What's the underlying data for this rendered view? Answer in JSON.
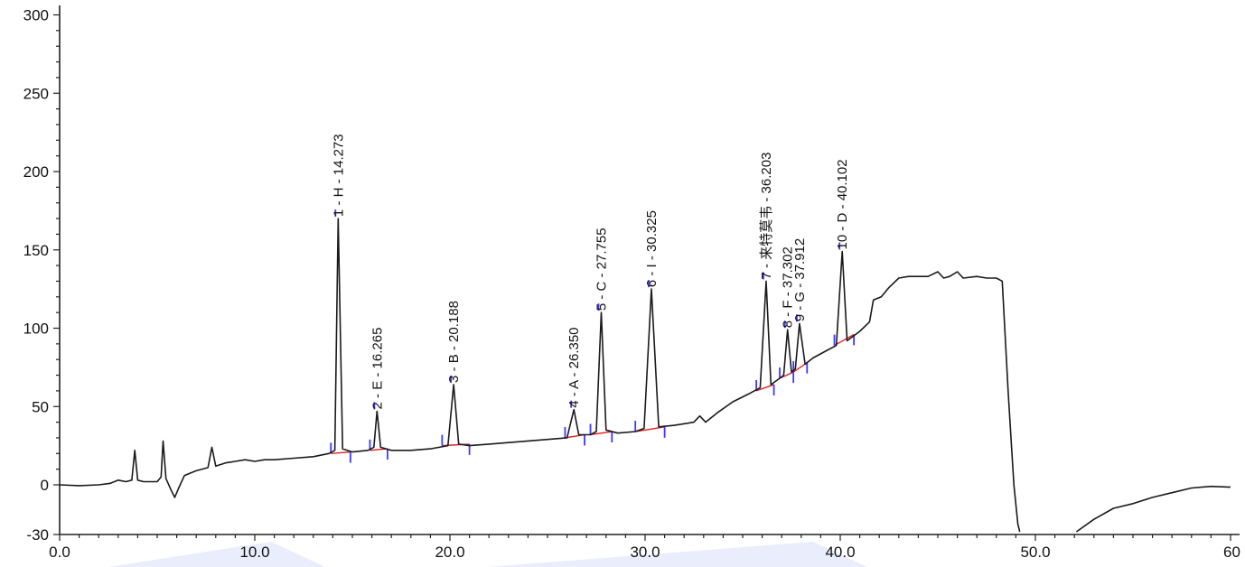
{
  "chart_data": {
    "type": "line",
    "title": "",
    "xlabel": "",
    "ylabel": "",
    "xlim": [
      0,
      60
    ],
    "ylim": [
      -30,
      300
    ],
    "x_ticks": [
      "0.0",
      "10.0",
      "20.0",
      "30.0",
      "40.0",
      "50.0",
      "60"
    ],
    "x_tick_values": [
      0,
      10,
      20,
      30,
      40,
      50,
      60
    ],
    "y_ticks": [
      "300",
      "250",
      "200",
      "150",
      "100",
      "50",
      "0",
      "-30"
    ],
    "y_tick_values": [
      300,
      250,
      200,
      150,
      100,
      50,
      0,
      -30
    ],
    "series": [
      {
        "points": [
          [
            0,
            0
          ],
          [
            1,
            -0.5
          ],
          [
            2,
            0
          ],
          [
            2.6,
            1
          ],
          [
            3.0,
            3
          ],
          [
            3.4,
            2
          ],
          [
            3.7,
            3
          ],
          [
            3.85,
            22
          ],
          [
            4.0,
            3
          ],
          [
            4.3,
            2
          ],
          [
            5.0,
            2
          ],
          [
            5.2,
            5
          ],
          [
            5.3,
            28
          ],
          [
            5.45,
            4
          ],
          [
            5.7,
            -3
          ],
          [
            5.9,
            -8
          ],
          [
            6.1,
            -2
          ],
          [
            6.4,
            6
          ],
          [
            7.0,
            9
          ],
          [
            7.6,
            11
          ],
          [
            7.8,
            24
          ],
          [
            8.0,
            12
          ],
          [
            8.5,
            14
          ],
          [
            9.0,
            15
          ],
          [
            9.5,
            16
          ],
          [
            10.0,
            15
          ],
          [
            10.5,
            16
          ],
          [
            11,
            16
          ],
          [
            12,
            17
          ],
          [
            13,
            18
          ],
          [
            13.8,
            20
          ],
          [
            14.1,
            22
          ],
          [
            14.273,
            170
          ],
          [
            14.5,
            23
          ],
          [
            15,
            21
          ],
          [
            15.8,
            22
          ],
          [
            16.1,
            24
          ],
          [
            16.265,
            47
          ],
          [
            16.45,
            24
          ],
          [
            17,
            22
          ],
          [
            18,
            22
          ],
          [
            19,
            23
          ],
          [
            19.9,
            25
          ],
          [
            20.188,
            64
          ],
          [
            20.45,
            26
          ],
          [
            21,
            25
          ],
          [
            22,
            26
          ],
          [
            23,
            27
          ],
          [
            24,
            28
          ],
          [
            25,
            29
          ],
          [
            26.0,
            30
          ],
          [
            26.35,
            48
          ],
          [
            26.6,
            32
          ],
          [
            27.2,
            32
          ],
          [
            27.5,
            34
          ],
          [
            27.755,
            110
          ],
          [
            28.0,
            35
          ],
          [
            28.6,
            33
          ],
          [
            29.5,
            34
          ],
          [
            29.95,
            36
          ],
          [
            30.325,
            125
          ],
          [
            30.7,
            37
          ],
          [
            31.5,
            38
          ],
          [
            32.5,
            40
          ],
          [
            32.8,
            44
          ],
          [
            33.1,
            40
          ],
          [
            33.7,
            46
          ],
          [
            34.5,
            53
          ],
          [
            35.3,
            58
          ],
          [
            35.9,
            62
          ],
          [
            36.203,
            130
          ],
          [
            36.45,
            64
          ],
          [
            36.9,
            68
          ],
          [
            37.1,
            70
          ],
          [
            37.302,
            99
          ],
          [
            37.5,
            72
          ],
          [
            37.7,
            74
          ],
          [
            37.912,
            103
          ],
          [
            38.2,
            77
          ],
          [
            38.6,
            81
          ],
          [
            39.2,
            85
          ],
          [
            39.8,
            89
          ],
          [
            40.102,
            149
          ],
          [
            40.35,
            92
          ],
          [
            41.0,
            98
          ],
          [
            41.5,
            104
          ],
          [
            41.7,
            118
          ],
          [
            42.1,
            120
          ],
          [
            42.5,
            126
          ],
          [
            43,
            132
          ],
          [
            43.5,
            133
          ],
          [
            44,
            133
          ],
          [
            44.5,
            133
          ],
          [
            45.0,
            136
          ],
          [
            45.3,
            132
          ],
          [
            45.6,
            133
          ],
          [
            46.0,
            136
          ],
          [
            46.3,
            132
          ],
          [
            47,
            133
          ],
          [
            47.5,
            132
          ],
          [
            48,
            132
          ],
          [
            48.3,
            130
          ],
          [
            48.6,
            60
          ],
          [
            48.9,
            0
          ],
          [
            49.1,
            -25
          ],
          [
            49.2,
            -30
          ]
        ]
      },
      {
        "points": [
          [
            52.1,
            -30
          ],
          [
            53,
            -22
          ],
          [
            54,
            -15
          ],
          [
            55,
            -12
          ],
          [
            56,
            -8
          ],
          [
            57,
            -5
          ],
          [
            58,
            -2
          ],
          [
            59,
            -1
          ],
          [
            60,
            -1.5
          ]
        ]
      }
    ],
    "peaks": [
      {
        "label": "1 - H - 14.273",
        "rt": 14.273,
        "height": 170
      },
      {
        "label": "2 - E - 16.265",
        "rt": 16.265,
        "height": 47
      },
      {
        "label": "3 - B - 20.188",
        "rt": 20.188,
        "height": 64
      },
      {
        "label": "4 - A - 26.350",
        "rt": 26.35,
        "height": 48
      },
      {
        "label": "5 - C - 27.755",
        "rt": 27.755,
        "height": 110
      },
      {
        "label": "6 - I - 30.325",
        "rt": 30.325,
        "height": 125
      },
      {
        "label": "7 - 来特莫韦 - 36.203",
        "rt": 36.203,
        "height": 130
      },
      {
        "label": "8 - F - 37.302",
        "rt": 37.302,
        "height": 99
      },
      {
        "label": "9 - G - 37.912",
        "rt": 37.912,
        "height": 103
      },
      {
        "label": "10 - D - 40.102",
        "rt": 40.102,
        "height": 149
      }
    ],
    "integration_baselines": [
      [
        [
          13.9,
          20
        ],
        [
          14.9,
          21
        ]
      ],
      [
        [
          15.9,
          22
        ],
        [
          16.8,
          23
        ]
      ],
      [
        [
          19.6,
          25
        ],
        [
          21.0,
          26
        ]
      ],
      [
        [
          25.9,
          30
        ],
        [
          26.9,
          32
        ]
      ],
      [
        [
          27.2,
          32
        ],
        [
          28.3,
          34
        ]
      ],
      [
        [
          29.5,
          34
        ],
        [
          31.0,
          37
        ]
      ],
      [
        [
          35.7,
          60
        ],
        [
          36.6,
          64
        ]
      ],
      [
        [
          36.9,
          68
        ],
        [
          37.6,
          72
        ]
      ],
      [
        [
          37.6,
          72
        ],
        [
          38.3,
          78
        ]
      ],
      [
        [
          39.7,
          89
        ],
        [
          40.7,
          96
        ]
      ]
    ],
    "colors": {
      "trace": "#1a1a1a",
      "baseline": "#e02020",
      "marker": "#3a3aff"
    },
    "grid": false,
    "legend": "none"
  }
}
